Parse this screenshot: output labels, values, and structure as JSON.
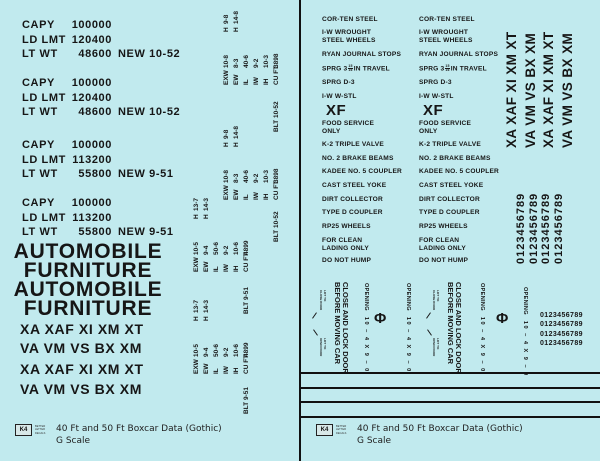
{
  "left": {
    "capacity_groups": [
      {
        "capy_label": "CAPY",
        "capy": "100000",
        "ld_lmt_label": "LD LMT",
        "ld_lmt": "120400",
        "lt_wt_label": "LT WT",
        "lt_wt": "48600",
        "new": "NEW 10-52"
      },
      {
        "capy_label": "CAPY",
        "capy": "100000",
        "ld_lmt_label": "LD LMT",
        "ld_lmt": "120400",
        "lt_wt_label": "LT WT",
        "lt_wt": "48600",
        "new": "NEW 10-52"
      },
      {
        "capy_label": "CAPY",
        "capy": "100000",
        "ld_lmt_label": "LD LMT",
        "ld_lmt": "113200",
        "lt_wt_label": "LT WT",
        "lt_wt": "55800",
        "new": "NEW 9-51"
      },
      {
        "capy_label": "CAPY",
        "capy": "100000",
        "ld_lmt_label": "LD LMT",
        "ld_lmt": "113200",
        "lt_wt_label": "LT WT",
        "lt_wt": "55800",
        "new": "NEW 9-51"
      }
    ],
    "car_type_lines": [
      "AUTOMOBILE",
      "FURNITURE",
      "AUTOMOBILE",
      "FURNITURE"
    ],
    "reporting_marks": [
      "XA XAF XI XM XT",
      "VA VM VS BX XM",
      "XA XAF XI XM XT",
      "VA VM VS BX XM"
    ],
    "dimension_blocks": [
      {
        "rows": [
          [
            "EXW",
            "10-8",
            "H",
            "9-8"
          ],
          [
            "EW",
            "8-3",
            "H",
            "14-8"
          ],
          [
            "IL",
            "40-6"
          ],
          [
            "IW",
            "9-2"
          ],
          [
            "IH",
            "10-3"
          ],
          [
            "CU FT",
            "3898"
          ]
        ],
        "built": "BLT 10-52"
      },
      {
        "rows": [
          [
            "EXW",
            "10-8",
            "H",
            "9-8"
          ],
          [
            "EW",
            "8-3",
            "H",
            "14-8"
          ],
          [
            "IL",
            "40-6"
          ],
          [
            "IW",
            "9-2"
          ],
          [
            "IH",
            "10-3"
          ],
          [
            "CU FT",
            "3898"
          ]
        ],
        "built": "BLT 10-52"
      },
      {
        "rows": [
          [
            "EXW",
            "10-5",
            "H",
            "13-7"
          ],
          [
            "EW",
            "9-4",
            "H",
            "14-3"
          ],
          [
            "IL",
            "50-6"
          ],
          [
            "IW",
            "9-2"
          ],
          [
            "IH",
            "10-6"
          ],
          [
            "CU FT",
            "4899"
          ]
        ],
        "built": "BLT 9-51"
      },
      {
        "rows": [
          [
            "EXW",
            "10-5",
            "H",
            "13-7"
          ],
          [
            "EW",
            "9-4",
            "H",
            "14-3"
          ],
          [
            "IL",
            "50-6"
          ],
          [
            "IW",
            "9-2"
          ],
          [
            "IH",
            "10-6"
          ],
          [
            "CU FT",
            "4899"
          ]
        ],
        "built": "BLT 9-51"
      }
    ]
  },
  "right": {
    "stencil_items": [
      {
        "lines": [
          "COR-TEN STEEL"
        ]
      },
      {
        "lines": [
          "I-W WROUGHT",
          "STEEL WHEELS"
        ]
      },
      {
        "lines": [
          "RYAN JOURNAL STOPS"
        ]
      },
      {
        "spring": {
          "prefix": "SPRG 3",
          "numerator": "15",
          "denominator": "16",
          "suffix": "IN TRAVEL"
        }
      },
      {
        "lines": [
          "SPRG D-3"
        ]
      },
      {
        "lines": [
          "I-W W-STL"
        ]
      },
      {
        "big": "XF"
      },
      {
        "lines": [
          "FOOD SERVICE",
          "ONLY"
        ]
      },
      {
        "lines": [
          "K-2 TRIPLE VALVE"
        ]
      },
      {
        "lines": [
          "NO. 2 BRAKE BEAMS"
        ]
      },
      {
        "lines": [
          "KADEE NO. 5 COUPLER"
        ]
      },
      {
        "lines": [
          "CAST STEEL YOKE"
        ]
      },
      {
        "lines": [
          "DIRT COLLECTOR"
        ]
      },
      {
        "lines": [
          "TYPE D COUPLER"
        ]
      },
      {
        "lines": [
          "RP25 WHEELS"
        ]
      },
      {
        "lines": [
          "FOR CLEAN",
          "LADING ONLY"
        ]
      },
      {
        "lines": [
          "DO NOT HUMP"
        ]
      }
    ],
    "reporting_marks": [
      "XA XAF XI XM XT",
      "VA VM VS BX XM",
      "XA XAF XI XM XT",
      "VA VM VS BX XM"
    ],
    "number_strips": [
      "0123456789",
      "0123456789",
      "0123456789",
      "0123456789"
    ],
    "small_number_strips": [
      "0123456789",
      "0123456789",
      "0123456789",
      "0123456789"
    ],
    "door": {
      "lift_close": [
        "LIFT TO",
        "CLOSE DOOR"
      ],
      "lift_open": [
        "LIFT TO",
        "OPEN DOOR"
      ],
      "lock_notice": [
        "CLOSE AND LOCK DOOR",
        "BEFORE MOVING CAR"
      ],
      "opening_label": "OPENING",
      "opening_size": "10 – 4  X  9 – 0",
      "lube_symbol": "Φ"
    }
  },
  "footer": {
    "logo_mark": "K4",
    "logo_words": [
      "BETTER",
      "LETTER",
      "DECALS"
    ],
    "title": "40 Ft and 50 Ft Boxcar Data (Gothic)",
    "scale": "G Scale"
  },
  "colors": {
    "sheet": "#c1eaee",
    "ink": "#161616"
  }
}
